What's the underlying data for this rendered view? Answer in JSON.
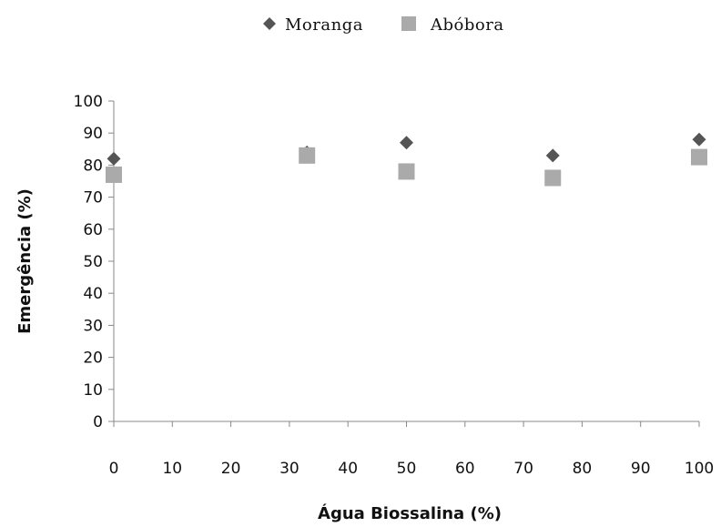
{
  "chart_data": {
    "type": "scatter",
    "xlabel": "Água Biossalina (%)",
    "ylabel": "Emergência (%)",
    "xlim": [
      0,
      100
    ],
    "ylim": [
      0,
      100
    ],
    "xticks": [
      "0",
      "10",
      "20",
      "30",
      "40",
      "50",
      "60",
      "70",
      "80",
      "90",
      "100"
    ],
    "yticks": [
      "0",
      "10",
      "20",
      "30",
      "40",
      "50",
      "60",
      "70",
      "80",
      "90",
      "100"
    ],
    "legend_position": "top",
    "grid": false,
    "series": [
      {
        "name": "Moranga",
        "marker": "diamond",
        "color": "#555555",
        "x": [
          0,
          33,
          50,
          75,
          100
        ],
        "y": [
          82,
          84,
          87,
          83,
          88
        ]
      },
      {
        "name": "Abóbora",
        "marker": "square",
        "color": "#aaaaaa",
        "x": [
          0,
          33,
          50,
          75,
          100
        ],
        "y": [
          77,
          83,
          78,
          76,
          82.5
        ]
      }
    ]
  }
}
